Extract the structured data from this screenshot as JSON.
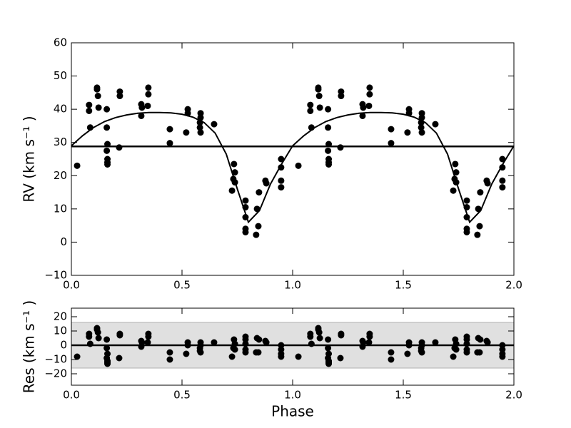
{
  "chart_data": [
    {
      "type": "scatter",
      "ylabel": "RV (km s⁻¹ )",
      "xlim": [
        0,
        2
      ],
      "ylim": [
        -10,
        60
      ],
      "xticks": [
        {
          "value": 0,
          "label": "0.0"
        },
        {
          "value": 0.5,
          "label": "0.5"
        },
        {
          "value": 1,
          "label": "1.0"
        },
        {
          "value": 1.5,
          "label": "1.5"
        },
        {
          "value": 2,
          "label": "2.0"
        }
      ],
      "yticks": [
        {
          "value": -10,
          "label": "−10"
        },
        0,
        10,
        20,
        30,
        40,
        50,
        60
      ],
      "hline": 28.8,
      "series": [
        {
          "kind": "points",
          "color": "#000000",
          "x": [
            0.026,
            0.08,
            0.08,
            0.085,
            0.116,
            0.116,
            0.12,
            0.123,
            0.16,
            0.16,
            0.163,
            0.16,
            0.163,
            0.163,
            0.163,
            0.216,
            0.219,
            0.219,
            0.316,
            0.319,
            0.316,
            0.348,
            0.348,
            0.345,
            0.445,
            0.445,
            0.519,
            0.526,
            0.526,
            0.584,
            0.584,
            0.581,
            0.581,
            0.584,
            0.645,
            0.735,
            0.739,
            0.732,
            0.726,
            0.739,
            0.787,
            0.787,
            0.787,
            0.787,
            0.787,
            0.839,
            0.845,
            0.848,
            0.835,
            0.877,
            0.881,
            0.948,
            0.948,
            0.948,
            0.948,
            1.026,
            1.08,
            1.08,
            1.085,
            1.116,
            1.116,
            1.12,
            1.123,
            1.16,
            1.16,
            1.163,
            1.16,
            1.163,
            1.163,
            1.163,
            1.216,
            1.219,
            1.219,
            1.316,
            1.319,
            1.316,
            1.348,
            1.348,
            1.345,
            1.445,
            1.445,
            1.519,
            1.526,
            1.526,
            1.584,
            1.584,
            1.581,
            1.581,
            1.584,
            1.645,
            1.735,
            1.739,
            1.732,
            1.726,
            1.739,
            1.787,
            1.787,
            1.787,
            1.787,
            1.787,
            1.839,
            1.845,
            1.848,
            1.835,
            1.877,
            1.881,
            1.948,
            1.948,
            1.948,
            1.948
          ],
          "values": [
            23,
            41.3,
            39.5,
            34.5,
            46.5,
            46,
            44,
            40.5,
            40,
            34.5,
            29.5,
            27.5,
            25,
            24,
            23.4,
            28.5,
            45.3,
            44,
            41.5,
            40.5,
            38,
            46.5,
            44.5,
            41,
            34,
            29.8,
            33,
            40,
            38.8,
            38.8,
            37.5,
            36,
            34.5,
            33,
            35.5,
            23.5,
            21,
            19,
            15.5,
            18,
            12.5,
            10.5,
            7.5,
            4,
            3,
            10,
            4.8,
            15,
            2.2,
            18.5,
            17.7,
            25,
            22.5,
            18.5,
            16.5,
            23,
            41.3,
            39.5,
            34.5,
            46.5,
            46,
            44,
            40.5,
            40,
            34.5,
            29.5,
            27.5,
            25,
            24,
            23.4,
            28.5,
            45.3,
            44,
            41.5,
            40.5,
            38,
            46.5,
            44.5,
            41,
            34,
            29.8,
            33,
            40,
            38.8,
            38.8,
            37.5,
            36,
            34.5,
            33,
            35.5,
            23.5,
            21,
            19,
            15.5,
            18,
            12.5,
            10.5,
            7.5,
            4,
            3,
            10,
            4.8,
            15,
            2.2,
            18.5,
            17.7,
            25,
            22.5,
            18.5,
            16.5
          ]
        },
        {
          "kind": "line",
          "color": "#000000",
          "x": [
            0,
            0.05,
            0.1,
            0.15,
            0.2,
            0.25,
            0.3,
            0.35,
            0.4,
            0.45,
            0.5,
            0.55,
            0.6,
            0.65,
            0.7,
            0.75,
            0.8,
            0.85,
            0.9,
            0.95,
            1,
            1.05,
            1.1,
            1.15,
            1.2,
            1.25,
            1.3,
            1.35,
            1.4,
            1.45,
            1.5,
            1.55,
            1.6,
            1.65,
            1.7,
            1.75,
            1.8,
            1.85,
            1.9,
            1.95,
            2
          ],
          "values": [
            29,
            32,
            34.5,
            36.3,
            37.5,
            38.3,
            38.8,
            39,
            39,
            38.9,
            38.5,
            37.6,
            36,
            32.8,
            26.5,
            16,
            6,
            9.5,
            17.5,
            23.5,
            29,
            32,
            34.5,
            36.3,
            37.5,
            38.3,
            38.8,
            39,
            39,
            38.9,
            38.5,
            37.6,
            36,
            32.8,
            26.5,
            16,
            6,
            9.5,
            17.5,
            23.5,
            29
          ]
        }
      ]
    },
    {
      "type": "scatter",
      "ylabel": "Res (km s⁻¹ )",
      "xlabel": "Phase",
      "xlim": [
        0,
        2
      ],
      "ylim": [
        -28,
        26
      ],
      "xticks": [
        {
          "value": 0,
          "label": "0.0"
        },
        {
          "value": 0.5,
          "label": "0.5"
        },
        {
          "value": 1,
          "label": "1.0"
        },
        {
          "value": 1.5,
          "label": "1.5"
        },
        {
          "value": 2,
          "label": "2.0"
        }
      ],
      "yticks": [
        {
          "value": -20,
          "label": "−20"
        },
        {
          "value": -10,
          "label": "−10"
        },
        0,
        10,
        20
      ],
      "hline": 0,
      "band": [
        -16,
        16
      ],
      "band_color": "#e0e0e0",
      "series": [
        {
          "kind": "points",
          "color": "#000000",
          "x": [
            0.026,
            0.08,
            0.08,
            0.085,
            0.116,
            0.116,
            0.12,
            0.123,
            0.16,
            0.16,
            0.163,
            0.16,
            0.163,
            0.163,
            0.163,
            0.216,
            0.219,
            0.219,
            0.316,
            0.319,
            0.316,
            0.348,
            0.348,
            0.345,
            0.445,
            0.445,
            0.519,
            0.526,
            0.526,
            0.584,
            0.584,
            0.581,
            0.581,
            0.584,
            0.645,
            0.735,
            0.739,
            0.732,
            0.726,
            0.739,
            0.787,
            0.787,
            0.787,
            0.787,
            0.787,
            0.839,
            0.845,
            0.848,
            0.835,
            0.877,
            0.881,
            0.948,
            0.948,
            0.948,
            0.948,
            1.026,
            1.08,
            1.08,
            1.085,
            1.116,
            1.116,
            1.12,
            1.123,
            1.16,
            1.16,
            1.163,
            1.16,
            1.163,
            1.163,
            1.163,
            1.216,
            1.219,
            1.219,
            1.316,
            1.319,
            1.316,
            1.348,
            1.348,
            1.345,
            1.445,
            1.445,
            1.519,
            1.526,
            1.526,
            1.584,
            1.584,
            1.581,
            1.581,
            1.584,
            1.645,
            1.735,
            1.739,
            1.732,
            1.726,
            1.739,
            1.787,
            1.787,
            1.787,
            1.787,
            1.787,
            1.839,
            1.845,
            1.848,
            1.835,
            1.877,
            1.881,
            1.948,
            1.948,
            1.948,
            1.948
          ],
          "values": [
            -8,
            8,
            6,
            1,
            12,
            11,
            9,
            5,
            4,
            -2,
            -6,
            -9,
            -11,
            -12,
            -13,
            -9,
            8,
            7,
            3,
            2,
            -1,
            8,
            6,
            2,
            -5,
            -10,
            -6,
            2,
            0,
            2,
            0,
            -2,
            -4,
            -5,
            2,
            4,
            1,
            -2,
            -8,
            -3,
            6,
            4,
            1,
            -3,
            -5,
            5,
            -5,
            4,
            -5,
            3,
            2,
            0,
            -3,
            -6,
            -8,
            -8,
            8,
            6,
            1,
            12,
            11,
            9,
            5,
            4,
            -2,
            -6,
            -9,
            -11,
            -12,
            -13,
            -9,
            8,
            7,
            3,
            2,
            -1,
            8,
            6,
            2,
            -5,
            -10,
            -6,
            2,
            0,
            2,
            0,
            -2,
            -4,
            -5,
            2,
            4,
            1,
            -2,
            -8,
            -3,
            6,
            4,
            1,
            -3,
            -5,
            5,
            -5,
            4,
            -5,
            3,
            2,
            0,
            -3,
            -6,
            -8
          ]
        }
      ]
    }
  ]
}
